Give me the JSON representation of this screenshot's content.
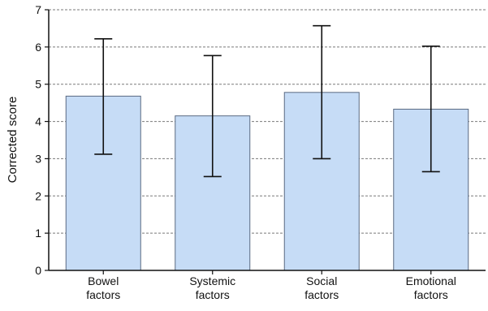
{
  "chart_data": {
    "type": "bar",
    "title": "",
    "xlabel": "",
    "ylabel": "Corrected score",
    "ylim": [
      0,
      7
    ],
    "yticks": [
      "0",
      "1",
      "2",
      "3",
      "4",
      "5",
      "6",
      "7"
    ],
    "grid": "horizontal dashed",
    "categories": [
      [
        "Bowel",
        "factors"
      ],
      [
        "Systemic",
        "factors"
      ],
      [
        "Social",
        "factors"
      ],
      [
        "Emotional",
        "factors"
      ]
    ],
    "values": [
      4.68,
      4.15,
      4.78,
      4.33
    ],
    "error_bars": [
      {
        "low": 3.12,
        "high": 6.22
      },
      {
        "low": 2.52,
        "high": 5.77
      },
      {
        "low": 3.0,
        "high": 6.57
      },
      {
        "low": 2.65,
        "high": 6.02
      }
    ],
    "colors": {
      "bar_fill": "#c6dcf6",
      "bar_stroke": "#5a6a82",
      "grid": "#7a7a7a",
      "axis": "#111111"
    }
  }
}
